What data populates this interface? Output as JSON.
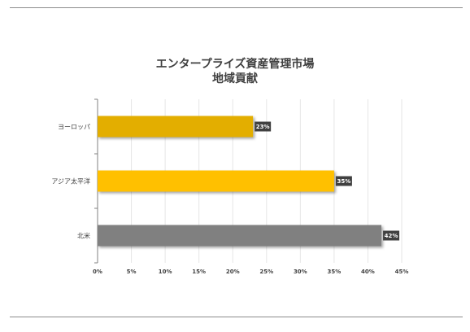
{
  "chart_data": {
    "type": "bar",
    "orientation": "horizontal",
    "title_lines": [
      "エンタープライズ資産管理市場",
      "地域貢献"
    ],
    "categories": [
      "ヨーロッパ",
      "アジア太平洋",
      "北米"
    ],
    "values": [
      23,
      35,
      42
    ],
    "data_labels": [
      "23%",
      "35%",
      "42%"
    ],
    "colors": [
      "#E3AE00",
      "#FFC000",
      "#808080"
    ],
    "xlim": [
      0,
      45
    ],
    "x_ticks": [
      "0%",
      "5%",
      "10%",
      "15%",
      "20%",
      "25%",
      "30%",
      "35%",
      "40%",
      "45%"
    ],
    "grid": true,
    "legend": "none"
  }
}
